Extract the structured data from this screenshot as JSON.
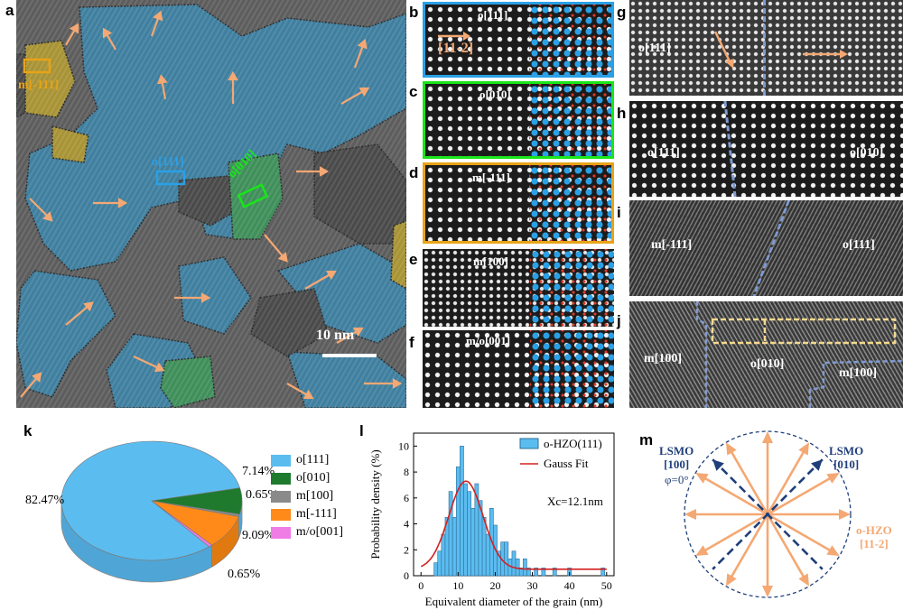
{
  "panels": {
    "a": {
      "label": "a",
      "region_labels": [
        {
          "text": "m[-111]",
          "color": "#e8a317"
        },
        {
          "text": "o[111]",
          "color": "#2aa0e6"
        },
        {
          "text": "o[010]",
          "color": "#19e619"
        }
      ],
      "scalebar": "10 nm"
    },
    "b": {
      "label": "b",
      "zone": "o[111]",
      "direction": "[11-2]",
      "border": "#2aa0e6"
    },
    "c": {
      "label": "c",
      "zone": "o[010]",
      "border": "#19e619"
    },
    "d": {
      "label": "d",
      "zone": "m[-111]",
      "border": "#e8a317"
    },
    "e": {
      "label": "e",
      "zone": "m[100]"
    },
    "f": {
      "label": "f",
      "zone": "m/o[001]"
    },
    "g": {
      "label": "g",
      "left": "o[111]"
    },
    "h": {
      "label": "h",
      "left": "o[111]",
      "right": "o[010]"
    },
    "i": {
      "label": "i",
      "left": "m[-111]",
      "right": "o[111]"
    },
    "j": {
      "label": "j",
      "left": "m[100]",
      "middle": "o[010]",
      "right": "m[100]"
    },
    "k": {
      "label": "k"
    },
    "l": {
      "label": "l"
    },
    "m": {
      "label": "m",
      "lsmo_left": [
        "LSMO",
        "[100]"
      ],
      "lsmo_right": [
        "LSMO",
        "[010]"
      ],
      "phi": "φ=0°",
      "ohzo": [
        "o-HZO",
        "[11-2]"
      ],
      "arrow_color": "#f4a873",
      "dash_color": "#1f3f7a"
    }
  },
  "chart_data": [
    {
      "type": "pie",
      "title": "",
      "slices": [
        {
          "name": "o[111]",
          "value": 82.47,
          "label": "82.47%",
          "color": "#5bbcf0"
        },
        {
          "name": "o[010]",
          "value": 7.14,
          "label": "7.14%",
          "color": "#1f7a2e"
        },
        {
          "name": "m[100]",
          "value": 0.65,
          "label": "0.65%",
          "color": "#8a8a8a"
        },
        {
          "name": "m[-111]",
          "value": 9.09,
          "label": "9.09%",
          "color": "#ff8a1a"
        },
        {
          "name": "m/o[001]",
          "value": 0.65,
          "label": "0.65%",
          "color": "#f07ce6"
        }
      ],
      "legend": [
        "o[111]",
        "o[010]",
        "m[100]",
        "m[-111]",
        "m/o[001]"
      ],
      "legend_position": "right"
    },
    {
      "type": "bar",
      "xlabel": "Equivalent diameter of the grain (nm)",
      "ylabel": "Probability density (%)",
      "xlim": [
        -2,
        52
      ],
      "ylim": [
        0,
        11
      ],
      "xticks": [
        0,
        10,
        20,
        30,
        40,
        50
      ],
      "yticks": [
        0,
        2,
        4,
        6,
        8,
        10
      ],
      "bar_width": 1,
      "series": [
        {
          "name": "o-HZO(111)",
          "color": "#5bbcf0",
          "x": [
            4,
            5,
            6,
            7,
            8,
            9,
            10,
            11,
            12,
            13,
            14,
            15,
            16,
            17,
            18,
            19,
            20,
            21,
            22,
            23,
            24,
            25,
            26,
            27,
            28,
            29,
            31,
            33,
            36,
            40,
            49
          ],
          "values": [
            1.0,
            1.9,
            3.2,
            4.5,
            6.5,
            4.5,
            8.4,
            10.0,
            7.1,
            6.5,
            5.2,
            7.1,
            5.8,
            4.5,
            3.2,
            5.2,
            3.9,
            1.9,
            2.6,
            2.6,
            1.3,
            1.9,
            1.3,
            0.6,
            1.3,
            0.6,
            0.6,
            0.6,
            0.6,
            0.6,
            0.6
          ]
        },
        {
          "name": "Gauss Fit",
          "type": "line",
          "color": "#d42020",
          "xc": 12.1,
          "amplitude": 6.8,
          "sigma": 4.6,
          "baseline": 0.5
        }
      ],
      "annotation": "Xc=12.1nm",
      "legend_position": "top-right"
    }
  ]
}
